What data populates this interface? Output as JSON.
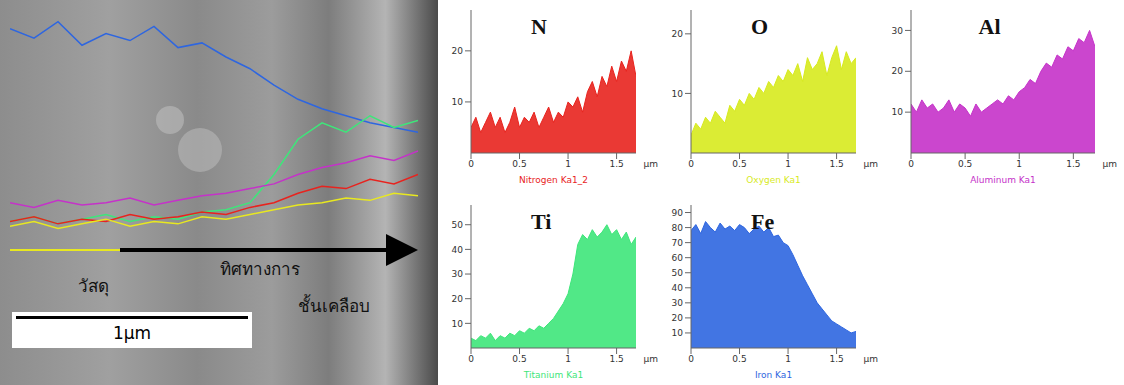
{
  "chart_data": [
    {
      "type": "line",
      "tick_labels": false,
      "x": [
        0,
        0.1,
        0.2,
        0.3,
        0.4,
        0.5,
        0.6,
        0.7,
        0.8,
        0.9,
        1,
        1.1,
        1.2,
        1.3,
        1.4,
        1.5,
        1.6,
        1.7
      ],
      "xlim": [
        0,
        1.7
      ],
      "ylim": [
        0,
        100
      ],
      "series": [
        {
          "color": "#2e66e0",
          "values": [
            92,
            88,
            95,
            85,
            90,
            87,
            93,
            84,
            86,
            80,
            75,
            68,
            62,
            58,
            55,
            52,
            50,
            48
          ]
        },
        {
          "color": "#3ee67a",
          "values": [
            10,
            12,
            9,
            11,
            13,
            10,
            12,
            11,
            14,
            15,
            18,
            30,
            45,
            52,
            48,
            55,
            50,
            53
          ]
        },
        {
          "color": "#c532c9",
          "values": [
            18,
            16,
            19,
            17,
            18,
            20,
            17,
            19,
            21,
            22,
            24,
            26,
            30,
            33,
            35,
            38,
            36,
            40
          ]
        },
        {
          "color": "#e8231e",
          "values": [
            10,
            12,
            9,
            11,
            10,
            13,
            11,
            12,
            14,
            13,
            16,
            18,
            22,
            25,
            24,
            28,
            26,
            30
          ]
        },
        {
          "color": "#e8e820",
          "values": [
            8,
            10,
            7,
            9,
            11,
            8,
            10,
            9,
            12,
            11,
            13,
            15,
            17,
            18,
            20,
            19,
            22,
            21
          ]
        }
      ],
      "annotations": [
        "วัสดุ",
        "ทิศทางการ",
        "ชั้นเคลือบ",
        "1µm"
      ]
    },
    {
      "type": "area",
      "title": "N",
      "xlabel": "Nitrogen Ka1_2",
      "annotations": [
        "µm"
      ],
      "x": [
        0,
        0.05,
        0.1,
        0.15,
        0.2,
        0.25,
        0.3,
        0.35,
        0.4,
        0.45,
        0.5,
        0.55,
        0.6,
        0.65,
        0.7,
        0.75,
        0.8,
        0.85,
        0.9,
        0.95,
        1,
        1.05,
        1.1,
        1.15,
        1.2,
        1.25,
        1.3,
        1.35,
        1.4,
        1.45,
        1.5,
        1.55,
        1.6,
        1.65,
        1.7
      ],
      "xlim": [
        0,
        1.7
      ],
      "xticks": [
        0,
        0.5,
        1,
        1.5
      ],
      "ylim": [
        0,
        28
      ],
      "yticks": [
        10,
        20
      ],
      "series": [
        {
          "color": "#e8231e",
          "values": [
            5,
            7,
            4,
            6,
            8,
            5,
            7,
            4,
            6,
            9,
            5,
            7,
            6,
            8,
            5,
            7,
            9,
            6,
            8,
            7,
            10,
            9,
            11,
            8,
            12,
            14,
            11,
            15,
            13,
            17,
            14,
            18,
            16,
            20,
            15
          ]
        }
      ]
    },
    {
      "type": "area",
      "title": "O",
      "xlabel": "Oxygen Ka1",
      "annotations": [
        "µm"
      ],
      "x": [
        0,
        0.05,
        0.1,
        0.15,
        0.2,
        0.25,
        0.3,
        0.35,
        0.4,
        0.45,
        0.5,
        0.55,
        0.6,
        0.65,
        0.7,
        0.75,
        0.8,
        0.85,
        0.9,
        0.95,
        1,
        1.05,
        1.1,
        1.15,
        1.2,
        1.25,
        1.3,
        1.35,
        1.4,
        1.45,
        1.5,
        1.55,
        1.6,
        1.65,
        1.7
      ],
      "xlim": [
        0,
        1.7
      ],
      "xticks": [
        0,
        0.5,
        1,
        1.5
      ],
      "ylim": [
        0,
        24
      ],
      "yticks": [
        10,
        20
      ],
      "series": [
        {
          "color": "#d7ea1e",
          "values": [
            3,
            5,
            4,
            6,
            5,
            7,
            6,
            5,
            8,
            7,
            9,
            8,
            10,
            9,
            11,
            10,
            12,
            11,
            13,
            12,
            14,
            13,
            15,
            12,
            16,
            14,
            15,
            17,
            13,
            16,
            18,
            14,
            17,
            15,
            16
          ]
        }
      ]
    },
    {
      "type": "area",
      "title": "Al",
      "xlabel": "Aluminum Ka1",
      "annotations": [
        "µm"
      ],
      "x": [
        0,
        0.05,
        0.1,
        0.15,
        0.2,
        0.25,
        0.3,
        0.35,
        0.4,
        0.45,
        0.5,
        0.55,
        0.6,
        0.65,
        0.7,
        0.75,
        0.8,
        0.85,
        0.9,
        0.95,
        1,
        1.05,
        1.1,
        1.15,
        1.2,
        1.25,
        1.3,
        1.35,
        1.4,
        1.45,
        1.5,
        1.55,
        1.6,
        1.65,
        1.7
      ],
      "xlim": [
        0,
        1.7
      ],
      "xticks": [
        0,
        0.5,
        1,
        1.5
      ],
      "ylim": [
        0,
        35
      ],
      "yticks": [
        10,
        20,
        30
      ],
      "series": [
        {
          "color": "#c532c9",
          "values": [
            12,
            10,
            13,
            11,
            12,
            10,
            11,
            13,
            10,
            12,
            11,
            9,
            12,
            10,
            11,
            12,
            13,
            12,
            14,
            13,
            15,
            16,
            18,
            17,
            20,
            22,
            21,
            24,
            23,
            26,
            25,
            28,
            27,
            30,
            26
          ]
        }
      ]
    },
    {
      "type": "area",
      "title": "Ti",
      "xlabel": "Titanium Ka1",
      "annotations": [
        "µm"
      ],
      "x": [
        0,
        0.05,
        0.1,
        0.15,
        0.2,
        0.25,
        0.3,
        0.35,
        0.4,
        0.45,
        0.5,
        0.55,
        0.6,
        0.65,
        0.7,
        0.75,
        0.8,
        0.85,
        0.9,
        0.95,
        1,
        1.05,
        1.1,
        1.15,
        1.2,
        1.25,
        1.3,
        1.35,
        1.4,
        1.45,
        1.5,
        1.55,
        1.6,
        1.65,
        1.7
      ],
      "xlim": [
        0,
        1.7
      ],
      "xticks": [
        0,
        0.5,
        1,
        1.5
      ],
      "ylim": [
        0,
        58
      ],
      "yticks": [
        10,
        20,
        30,
        40,
        50
      ],
      "series": [
        {
          "color": "#3ee67a",
          "values": [
            4,
            3,
            5,
            4,
            6,
            3,
            5,
            4,
            6,
            5,
            7,
            6,
            8,
            7,
            9,
            8,
            10,
            12,
            15,
            18,
            22,
            30,
            42,
            46,
            44,
            48,
            45,
            47,
            50,
            46,
            48,
            44,
            47,
            42,
            45
          ]
        }
      ]
    },
    {
      "type": "area",
      "title": "Fe",
      "xlabel": "Iron Ka1",
      "annotations": [
        "µm"
      ],
      "x": [
        0,
        0.05,
        0.1,
        0.15,
        0.2,
        0.25,
        0.3,
        0.35,
        0.4,
        0.45,
        0.5,
        0.55,
        0.6,
        0.65,
        0.7,
        0.75,
        0.8,
        0.85,
        0.9,
        0.95,
        1,
        1.05,
        1.1,
        1.15,
        1.2,
        1.25,
        1.3,
        1.35,
        1.4,
        1.45,
        1.5,
        1.55,
        1.6,
        1.65,
        1.7
      ],
      "xlim": [
        0,
        1.7
      ],
      "xticks": [
        0,
        0.5,
        1,
        1.5
      ],
      "ylim": [
        0,
        95
      ],
      "yticks": [
        10,
        20,
        30,
        40,
        50,
        60,
        70,
        80,
        90
      ],
      "series": [
        {
          "color": "#2e66e0",
          "values": [
            78,
            82,
            76,
            84,
            80,
            77,
            83,
            79,
            81,
            78,
            82,
            80,
            76,
            79,
            81,
            77,
            80,
            74,
            75,
            70,
            68,
            62,
            55,
            48,
            42,
            36,
            30,
            26,
            22,
            18,
            16,
            14,
            12,
            10,
            11
          ]
        }
      ]
    }
  ]
}
